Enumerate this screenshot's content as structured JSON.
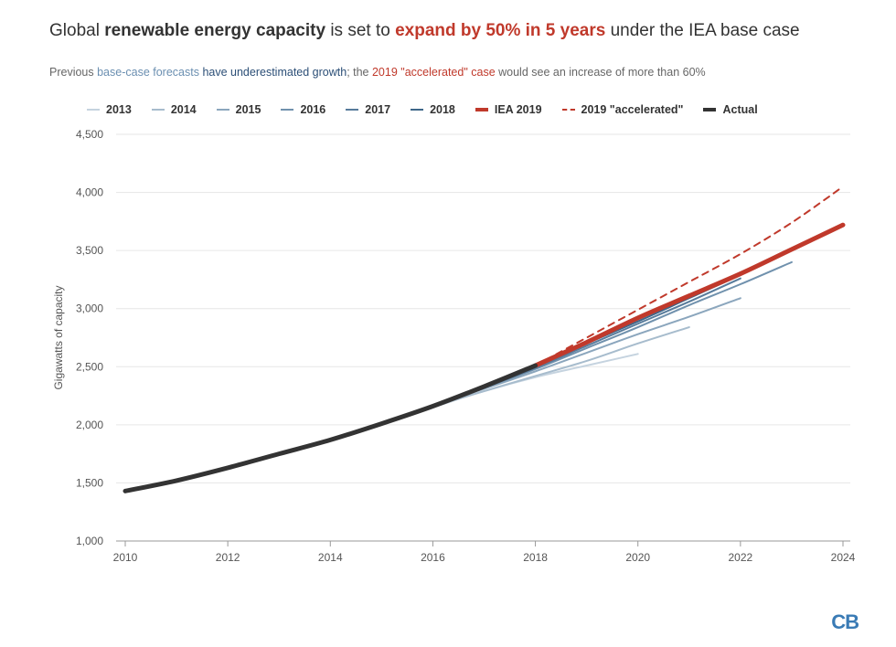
{
  "title": {
    "p1": "Global ",
    "b1": "renewable energy capacity",
    "p2": " is set to ",
    "r1": "expand by 50% in 5 years",
    "p3": " under the IEA base case"
  },
  "subtitle": {
    "p1": "Previous ",
    "blue1": "base-case forecasts",
    "p2": " ",
    "dblue1": "have underestimated growth",
    "p3": "; the ",
    "red1": "2019 \"accelerated\" case",
    "p4": " would see an increase of more than 60%"
  },
  "logo": "CB",
  "chart_data": {
    "type": "line",
    "ylabel": "Gigawatts of capacity",
    "xlabel": "",
    "xlim": [
      2010,
      2024
    ],
    "ylim": [
      1000,
      4500
    ],
    "x_ticks": [
      2010,
      2012,
      2014,
      2016,
      2018,
      2020,
      2022,
      2024
    ],
    "y_ticks": [
      1000,
      1500,
      2000,
      2500,
      3000,
      3500,
      4000,
      4500
    ],
    "y_tick_labels": [
      "1,000",
      "1,500",
      "2,000",
      "2,500",
      "3,000",
      "3,500",
      "4,000",
      "4,500"
    ],
    "grid": "horizontal",
    "legend_position": "top",
    "series": [
      {
        "name": "2013",
        "color": "#c5d3df",
        "width": 2,
        "dash": false,
        "points": [
          [
            2015,
            2010
          ],
          [
            2016,
            2150
          ],
          [
            2017,
            2290
          ],
          [
            2018,
            2410
          ],
          [
            2019,
            2510
          ],
          [
            2020,
            2610
          ]
        ]
      },
      {
        "name": "2014",
        "color": "#a7bccd",
        "width": 2,
        "dash": false,
        "points": [
          [
            2015,
            2010
          ],
          [
            2016,
            2160
          ],
          [
            2017,
            2290
          ],
          [
            2018,
            2420
          ],
          [
            2019,
            2550
          ],
          [
            2020,
            2700
          ],
          [
            2021,
            2840
          ]
        ]
      },
      {
        "name": "2015",
        "color": "#8ba6bd",
        "width": 2,
        "dash": false,
        "points": [
          [
            2015,
            2010
          ],
          [
            2016,
            2170
          ],
          [
            2017,
            2310
          ],
          [
            2018,
            2460
          ],
          [
            2019,
            2620
          ],
          [
            2020,
            2780
          ],
          [
            2021,
            2930
          ],
          [
            2022,
            3090
          ]
        ]
      },
      {
        "name": "2016",
        "color": "#7091ad",
        "width": 2,
        "dash": false,
        "points": [
          [
            2016,
            2170
          ],
          [
            2017,
            2320
          ],
          [
            2018,
            2480
          ],
          [
            2019,
            2660
          ],
          [
            2020,
            2840
          ],
          [
            2021,
            3030
          ],
          [
            2022,
            3210
          ],
          [
            2023,
            3400
          ]
        ]
      },
      {
        "name": "2017",
        "color": "#577b9b",
        "width": 2,
        "dash": false,
        "points": [
          [
            2017,
            2320
          ],
          [
            2018,
            2490
          ],
          [
            2019,
            2680
          ],
          [
            2020,
            2870
          ],
          [
            2021,
            3060
          ],
          [
            2022,
            3260
          ]
        ]
      },
      {
        "name": "2018",
        "color": "#3e6689",
        "width": 2,
        "dash": false,
        "points": [
          [
            2018,
            2500
          ],
          [
            2019,
            2700
          ],
          [
            2020,
            2890
          ],
          [
            2021,
            3090
          ],
          [
            2022,
            3290
          ]
        ]
      },
      {
        "name": "IEA 2019",
        "color": "#c0392b",
        "width": 5,
        "dash": false,
        "points": [
          [
            2018,
            2510
          ],
          [
            2019,
            2710
          ],
          [
            2020,
            2920
          ],
          [
            2021,
            3110
          ],
          [
            2022,
            3300
          ],
          [
            2023,
            3510
          ],
          [
            2024,
            3720
          ]
        ]
      },
      {
        "name": "2019 \"accelerated\"",
        "color": "#c0392b",
        "width": 2,
        "dash": true,
        "points": [
          [
            2018,
            2510
          ],
          [
            2019,
            2750
          ],
          [
            2020,
            2990
          ],
          [
            2021,
            3230
          ],
          [
            2022,
            3470
          ],
          [
            2023,
            3740
          ],
          [
            2024,
            4050
          ]
        ]
      },
      {
        "name": "Actual",
        "color": "#333333",
        "width": 5,
        "dash": false,
        "points": [
          [
            2010,
            1430
          ],
          [
            2011,
            1520
          ],
          [
            2012,
            1630
          ],
          [
            2013,
            1750
          ],
          [
            2014,
            1870
          ],
          [
            2015,
            2010
          ],
          [
            2016,
            2160
          ],
          [
            2017,
            2330
          ],
          [
            2018,
            2510
          ]
        ]
      }
    ]
  }
}
